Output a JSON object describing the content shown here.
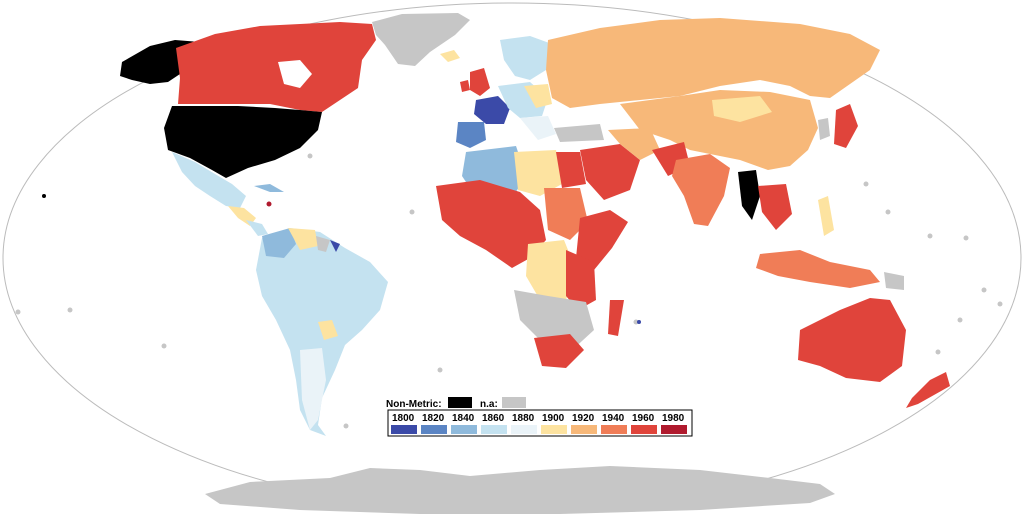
{
  "legend": {
    "nonmetric_label": "Non-Metric:",
    "na_label": "n.a:",
    "nonmetric_color": "#000000",
    "na_color": "#c6c6c6",
    "bins": [
      {
        "label": "1800",
        "color": "#3b4aa8"
      },
      {
        "label": "1820",
        "color": "#5b85c4"
      },
      {
        "label": "1840",
        "color": "#8fbadc"
      },
      {
        "label": "1860",
        "color": "#c4e2f0"
      },
      {
        "label": "1880",
        "color": "#eaf3f8"
      },
      {
        "label": "1900",
        "color": "#fde3a0"
      },
      {
        "label": "1920",
        "color": "#f7b879"
      },
      {
        "label": "1940",
        "color": "#f07d57"
      },
      {
        "label": "1960",
        "color": "#e0443b"
      },
      {
        "label": "1980",
        "color": "#b01a2e"
      }
    ]
  },
  "map": {
    "ocean_color": "#ffffff",
    "outline_color": "#bbbbbb"
  }
}
